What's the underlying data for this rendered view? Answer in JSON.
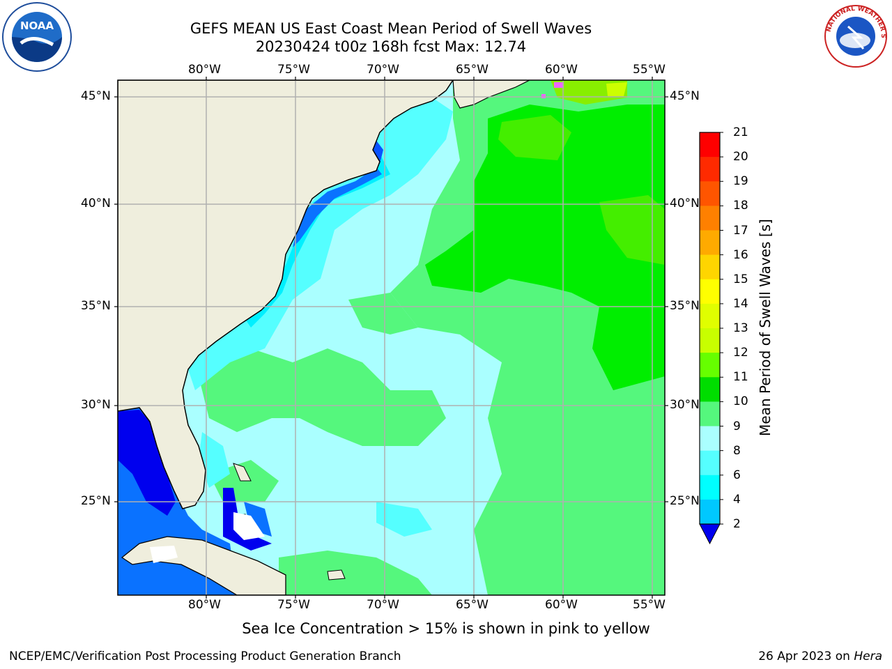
{
  "title": {
    "line1": "GEFS MEAN US East Coast Mean Period of Swell Waves",
    "line2": "20230424 t00z 168h fcst   Max: 12.74"
  },
  "map": {
    "lon_labels": [
      "80°W",
      "75°W",
      "70°W",
      "65°W",
      "60°W",
      "55°W"
    ],
    "lat_labels": [
      "45°N",
      "40°N",
      "35°N",
      "30°N",
      "25°N"
    ],
    "colors": {
      "land": "#efeedd",
      "grid": "#b0b0b0",
      "coast": "#000000"
    }
  },
  "colorbar": {
    "label": "Mean Period of Swell Waves [s]",
    "ticks": [
      "21",
      "20",
      "19",
      "18",
      "17",
      "16",
      "15",
      "14",
      "13",
      "12",
      "11",
      "10",
      "9",
      "8",
      "6",
      "4",
      "2"
    ],
    "colors": [
      "#ff0000",
      "#ff2a00",
      "#ff5500",
      "#ff8000",
      "#ffaa00",
      "#ffd500",
      "#ffff00",
      "#ccff00",
      "#c8ff00",
      "#66ff00",
      "#22ee00",
      "#00dd00",
      "#55f77d",
      "#aaffff",
      "#55ffff",
      "#00f0ff",
      "#00a8ff",
      "#0055ff",
      "#0000ee"
    ]
  },
  "note": "Sea Ice Concentration > 15% is shown in pink to yellow",
  "footer": {
    "left": "NCEP/EMC/Verification Post Processing Product Generation Branch",
    "right_date": "26 Apr 2023 on",
    "right_host": "Hera"
  },
  "logos": {
    "noaa": "NOAA",
    "nws": "NATIONAL WEATHER SERVICE"
  }
}
